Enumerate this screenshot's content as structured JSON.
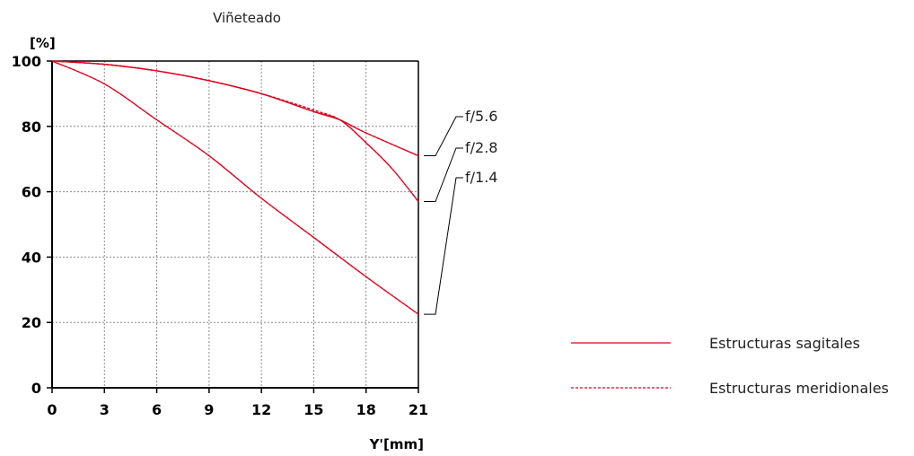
{
  "chart_data": {
    "type": "line",
    "title": "Viñeteado",
    "ylabel": "[%]",
    "xlabel": "Y'[mm]",
    "xlim": [
      0,
      21
    ],
    "ylim": [
      0,
      100
    ],
    "xticks": [
      "0",
      "3",
      "6",
      "9",
      "12",
      "15",
      "18",
      "21"
    ],
    "yticks": [
      "0",
      "20",
      "40",
      "60",
      "80",
      "100"
    ],
    "grid": true,
    "line_color": "#e3001b",
    "series": [
      {
        "name": "f/5.6",
        "style": "sagittal",
        "x": [
          0,
          3,
          6,
          9,
          12,
          15,
          16.5,
          18,
          21
        ],
        "y": [
          100,
          99,
          97,
          94,
          90,
          84.5,
          82,
          78,
          71
        ]
      },
      {
        "name": "f/5.6",
        "style": "meridional",
        "x": [
          0,
          3,
          6,
          9,
          12,
          15,
          16.5,
          18,
          21
        ],
        "y": [
          100,
          99,
          97,
          94,
          90,
          85,
          82,
          78,
          71
        ]
      },
      {
        "name": "f/2.8",
        "style": "sagittal",
        "x": [
          0,
          3,
          6,
          9,
          12,
          15,
          16.5,
          18,
          19.5,
          21
        ],
        "y": [
          100,
          99,
          97,
          94,
          90,
          84.5,
          82,
          75,
          67,
          57
        ]
      },
      {
        "name": "f/2.8",
        "style": "meridional",
        "x": [
          0,
          3,
          6,
          9,
          12,
          15,
          16.5,
          18,
          19.5,
          21
        ],
        "y": [
          100,
          99,
          97,
          94,
          90,
          85,
          82,
          75,
          67,
          57
        ]
      },
      {
        "name": "f/1.4",
        "style": "sagittal",
        "x": [
          0,
          3,
          6,
          9,
          12,
          15,
          18,
          21
        ],
        "y": [
          100,
          93,
          82,
          71,
          58,
          46,
          34,
          22.5
        ]
      },
      {
        "name": "f/1.4",
        "style": "meridional",
        "x": [
          0,
          3,
          6,
          9,
          12,
          15,
          18,
          21
        ],
        "y": [
          100,
          93,
          82,
          71,
          58,
          46,
          34,
          22.5
        ]
      }
    ],
    "curve_labels": [
      {
        "text": "f/5.6",
        "y": 71
      },
      {
        "text": "f/2.8",
        "y": 57
      },
      {
        "text": "f/1.4",
        "y": 22.5
      }
    ],
    "legend": [
      {
        "label": "Estructuras sagitales",
        "style": "solid"
      },
      {
        "label": "Estructuras meridionales",
        "style": "dashed"
      }
    ]
  }
}
